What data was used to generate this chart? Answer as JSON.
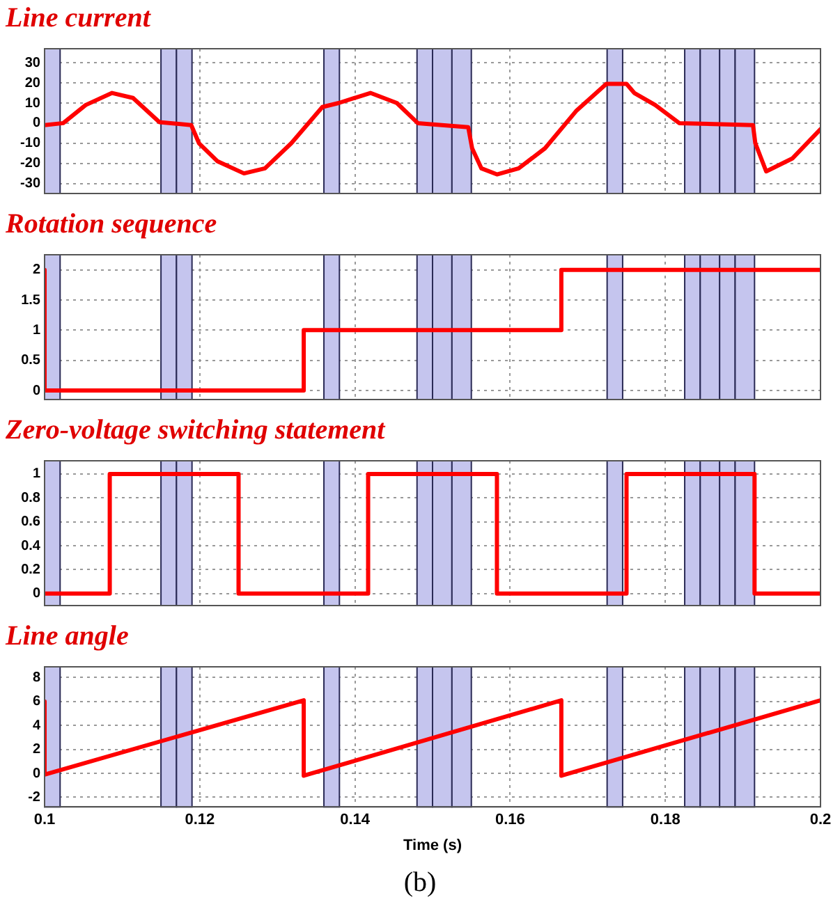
{
  "chart_data": [
    {
      "type": "line",
      "title": "Line current",
      "xlim": [
        0.1,
        0.2
      ],
      "xticks": [
        0.1,
        0.12,
        0.14,
        0.16,
        0.18,
        0.2
      ],
      "ylim": [
        -35,
        37
      ],
      "yticks": [
        -30,
        -20,
        -10,
        0,
        10,
        20,
        30
      ],
      "grid": true,
      "tick_labels": "y",
      "series": [
        {
          "color": "#ff0000",
          "x": [
            0.1,
            0.1024,
            0.1053,
            0.1087,
            0.1114,
            0.1148,
            0.1189,
            0.1199,
            0.1223,
            0.1257,
            0.1284,
            0.1318,
            0.1358,
            0.1379,
            0.142,
            0.1454,
            0.1481,
            0.1546,
            0.1551,
            0.1563,
            0.1583,
            0.1611,
            0.1645,
            0.1685,
            0.1724,
            0.175,
            0.176,
            0.1787,
            0.1818,
            0.1913,
            0.1916,
            0.193,
            0.1964,
            0.2
          ],
          "values": [
            -1,
            0,
            9,
            15,
            12.5,
            0.5,
            -1,
            -10,
            -19,
            -25,
            -22.5,
            -10,
            8,
            10,
            15,
            10,
            0,
            -2,
            -12.5,
            -22.5,
            -25.5,
            -22.5,
            -12.5,
            6,
            19.5,
            19.5,
            15,
            9,
            0,
            -1,
            -10,
            -24,
            -17.5,
            -3
          ]
        }
      ],
      "bands": [
        {
          "axis": "x",
          "from": 0.1,
          "to": 0.102,
          "color": "#c5c5ee"
        },
        {
          "axis": "x",
          "from": 0.115,
          "to": 0.117,
          "color": "#c5c5ee"
        },
        {
          "axis": "x",
          "from": 0.117,
          "to": 0.119,
          "color": "#c5c5ee"
        },
        {
          "axis": "x",
          "from": 0.136,
          "to": 0.138,
          "color": "#c5c5ee"
        },
        {
          "axis": "x",
          "from": 0.148,
          "to": 0.15,
          "color": "#c5c5ee"
        },
        {
          "axis": "x",
          "from": 0.15,
          "to": 0.1525,
          "color": "#c5c5ee"
        },
        {
          "axis": "x",
          "from": 0.1525,
          "to": 0.155,
          "color": "#c5c5ee"
        },
        {
          "axis": "x",
          "from": 0.1725,
          "to": 0.1745,
          "color": "#c5c5ee"
        },
        {
          "axis": "x",
          "from": 0.1825,
          "to": 0.1845,
          "color": "#c5c5ee"
        },
        {
          "axis": "x",
          "from": 0.1845,
          "to": 0.187,
          "color": "#c5c5ee"
        },
        {
          "axis": "x",
          "from": 0.187,
          "to": 0.189,
          "color": "#c5c5ee"
        },
        {
          "axis": "x",
          "from": 0.189,
          "to": 0.1915,
          "color": "#c5c5ee"
        }
      ]
    },
    {
      "type": "line",
      "title": "Rotation sequence",
      "xlim": [
        0.1,
        0.2
      ],
      "xticks": [
        0.1,
        0.12,
        0.14,
        0.16,
        0.18,
        0.2
      ],
      "ylim": [
        -0.15,
        2.25
      ],
      "yticks": [
        0,
        0.5,
        1,
        1.5,
        2
      ],
      "grid": true,
      "tick_labels": "y",
      "series": [
        {
          "color": "#ff0000",
          "x": [
            0.1,
            0.1,
            0.1334,
            0.1334,
            0.1666,
            0.1666,
            0.2
          ],
          "values": [
            2,
            0,
            0,
            1,
            1,
            2,
            2
          ]
        }
      ],
      "bands": [
        {
          "axis": "x",
          "from": 0.1,
          "to": 0.102,
          "color": "#c5c5ee"
        },
        {
          "axis": "x",
          "from": 0.115,
          "to": 0.117,
          "color": "#c5c5ee"
        },
        {
          "axis": "x",
          "from": 0.117,
          "to": 0.119,
          "color": "#c5c5ee"
        },
        {
          "axis": "x",
          "from": 0.136,
          "to": 0.138,
          "color": "#c5c5ee"
        },
        {
          "axis": "x",
          "from": 0.148,
          "to": 0.15,
          "color": "#c5c5ee"
        },
        {
          "axis": "x",
          "from": 0.15,
          "to": 0.1525,
          "color": "#c5c5ee"
        },
        {
          "axis": "x",
          "from": 0.1525,
          "to": 0.155,
          "color": "#c5c5ee"
        },
        {
          "axis": "x",
          "from": 0.1725,
          "to": 0.1745,
          "color": "#c5c5ee"
        },
        {
          "axis": "x",
          "from": 0.1825,
          "to": 0.1845,
          "color": "#c5c5ee"
        },
        {
          "axis": "x",
          "from": 0.1845,
          "to": 0.187,
          "color": "#c5c5ee"
        },
        {
          "axis": "x",
          "from": 0.187,
          "to": 0.189,
          "color": "#c5c5ee"
        },
        {
          "axis": "x",
          "from": 0.189,
          "to": 0.1915,
          "color": "#c5c5ee"
        }
      ]
    },
    {
      "type": "line",
      "title": "Zero-voltage switching statement",
      "xlim": [
        0.1,
        0.2
      ],
      "xticks": [
        0.1,
        0.12,
        0.14,
        0.16,
        0.18,
        0.2
      ],
      "ylim": [
        -0.1,
        1.11
      ],
      "yticks": [
        0,
        0.2,
        0.4,
        0.6,
        0.8,
        1
      ],
      "grid": true,
      "tick_labels": "y",
      "series": [
        {
          "color": "#ff0000",
          "x": [
            0.1,
            0.1084,
            0.1084,
            0.125,
            0.125,
            0.1417,
            0.1417,
            0.1583,
            0.1583,
            0.175,
            0.175,
            0.1915,
            0.1915,
            0.2
          ],
          "values": [
            0,
            0,
            1,
            1,
            0,
            0,
            1,
            1,
            0,
            0,
            1,
            1,
            0,
            0
          ]
        }
      ],
      "bands": [
        {
          "axis": "x",
          "from": 0.1,
          "to": 0.102,
          "color": "#c5c5ee"
        },
        {
          "axis": "x",
          "from": 0.115,
          "to": 0.117,
          "color": "#c5c5ee"
        },
        {
          "axis": "x",
          "from": 0.117,
          "to": 0.119,
          "color": "#c5c5ee"
        },
        {
          "axis": "x",
          "from": 0.136,
          "to": 0.138,
          "color": "#c5c5ee"
        },
        {
          "axis": "x",
          "from": 0.148,
          "to": 0.15,
          "color": "#c5c5ee"
        },
        {
          "axis": "x",
          "from": 0.15,
          "to": 0.1525,
          "color": "#c5c5ee"
        },
        {
          "axis": "x",
          "from": 0.1525,
          "to": 0.155,
          "color": "#c5c5ee"
        },
        {
          "axis": "x",
          "from": 0.1725,
          "to": 0.1745,
          "color": "#c5c5ee"
        },
        {
          "axis": "x",
          "from": 0.1825,
          "to": 0.1845,
          "color": "#c5c5ee"
        },
        {
          "axis": "x",
          "from": 0.1845,
          "to": 0.187,
          "color": "#c5c5ee"
        },
        {
          "axis": "x",
          "from": 0.187,
          "to": 0.189,
          "color": "#c5c5ee"
        },
        {
          "axis": "x",
          "from": 0.189,
          "to": 0.1915,
          "color": "#c5c5ee"
        }
      ]
    },
    {
      "type": "line",
      "title": "Line angle",
      "xlabel": "Time (s)",
      "annotations": [
        "(b)"
      ],
      "xlim": [
        0.1,
        0.2
      ],
      "xticks": [
        0.1,
        0.12,
        0.14,
        0.16,
        0.18,
        0.2
      ],
      "ylim": [
        -2.8,
        8.9
      ],
      "yticks": [
        -2,
        0,
        2,
        4,
        6,
        8
      ],
      "grid": true,
      "series": [
        {
          "color": "#ff0000",
          "x": [
            0.1,
            0.1,
            0.1334,
            0.1334,
            0.1666,
            0.1666,
            0.2
          ],
          "values": [
            6,
            -0.1,
            6.1,
            -0.2,
            6.1,
            -0.2,
            6.1
          ]
        }
      ],
      "bands": [
        {
          "axis": "x",
          "from": 0.1,
          "to": 0.102,
          "color": "#c5c5ee"
        },
        {
          "axis": "x",
          "from": 0.115,
          "to": 0.117,
          "color": "#c5c5ee"
        },
        {
          "axis": "x",
          "from": 0.117,
          "to": 0.119,
          "color": "#c5c5ee"
        },
        {
          "axis": "x",
          "from": 0.136,
          "to": 0.138,
          "color": "#c5c5ee"
        },
        {
          "axis": "x",
          "from": 0.148,
          "to": 0.15,
          "color": "#c5c5ee"
        },
        {
          "axis": "x",
          "from": 0.15,
          "to": 0.1525,
          "color": "#c5c5ee"
        },
        {
          "axis": "x",
          "from": 0.1525,
          "to": 0.155,
          "color": "#c5c5ee"
        },
        {
          "axis": "x",
          "from": 0.1725,
          "to": 0.1745,
          "color": "#c5c5ee"
        },
        {
          "axis": "x",
          "from": 0.1825,
          "to": 0.1845,
          "color": "#c5c5ee"
        },
        {
          "axis": "x",
          "from": 0.1845,
          "to": 0.187,
          "color": "#c5c5ee"
        },
        {
          "axis": "x",
          "from": 0.187,
          "to": 0.189,
          "color": "#c5c5ee"
        },
        {
          "axis": "x",
          "from": 0.189,
          "to": 0.1915,
          "color": "#c5c5ee"
        }
      ]
    }
  ]
}
